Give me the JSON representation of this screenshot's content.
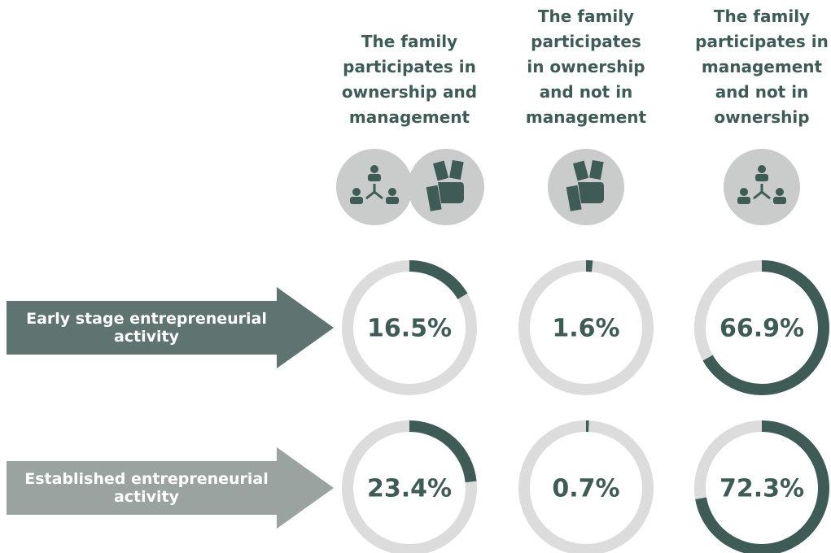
{
  "chart_data": {
    "type": "donut",
    "categories": [
      "The family participates in ownership and management",
      "The family participates in ownership and not in management",
      "The family participates in management and not in ownership"
    ],
    "series": [
      {
        "name": "Early stage entrepreneurial activity",
        "color": "#5f7370",
        "values": [
          16.5,
          1.6,
          66.9
        ],
        "value_labels": [
          "16.5%",
          "1.6%",
          "66.9%"
        ]
      },
      {
        "name": "Established entrepreneurial activity",
        "color": "#9aa3a0",
        "values": [
          23.4,
          0.7,
          72.3
        ],
        "value_labels": [
          "23.4%",
          "0.7%",
          "72.3%"
        ]
      }
    ],
    "ylim": [
      0,
      100
    ],
    "arc_color": "#3f5b56",
    "track_color": "#dcdcdc"
  }
}
